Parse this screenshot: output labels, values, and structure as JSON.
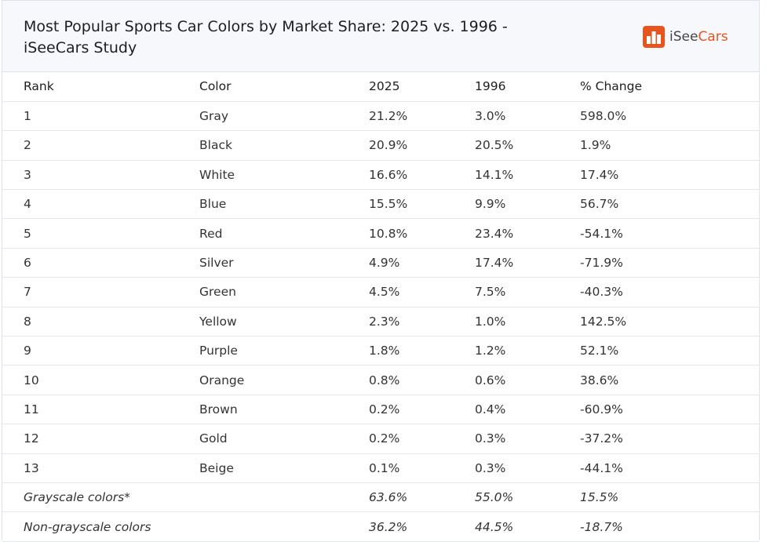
{
  "header": {
    "title": "Most Popular Sports Car Colors by Market Share: 2025 vs. 1996 - iSeeCars Study",
    "brand": {
      "prefix": "iSee",
      "suffix": "Cars"
    }
  },
  "table": {
    "columns": [
      "Rank",
      "Color",
      "2025",
      "1996",
      "% Change"
    ],
    "rows": [
      [
        "1",
        "Gray",
        "21.2%",
        "3.0%",
        "598.0%"
      ],
      [
        "2",
        "Black",
        "20.9%",
        "20.5%",
        "1.9%"
      ],
      [
        "3",
        "White",
        "16.6%",
        "14.1%",
        "17.4%"
      ],
      [
        "4",
        "Blue",
        "15.5%",
        "9.9%",
        "56.7%"
      ],
      [
        "5",
        "Red",
        "10.8%",
        "23.4%",
        "-54.1%"
      ],
      [
        "6",
        "Silver",
        "4.9%",
        "17.4%",
        "-71.9%"
      ],
      [
        "7",
        "Green",
        "4.5%",
        "7.5%",
        "-40.3%"
      ],
      [
        "8",
        "Yellow",
        "2.3%",
        "1.0%",
        "142.5%"
      ],
      [
        "9",
        "Purple",
        "1.8%",
        "1.2%",
        "52.1%"
      ],
      [
        "10",
        "Orange",
        "0.8%",
        "0.6%",
        "38.6%"
      ],
      [
        "11",
        "Brown",
        "0.2%",
        "0.4%",
        "-60.9%"
      ],
      [
        "12",
        "Gold",
        "0.2%",
        "0.3%",
        "-37.2%"
      ],
      [
        "13",
        "Beige",
        "0.1%",
        "0.3%",
        "-44.1%"
      ]
    ],
    "summary_rows": [
      [
        "Grayscale colors*",
        "63.6%",
        "55.0%",
        "15.5%"
      ],
      [
        "Non-grayscale colors",
        "36.2%",
        "44.5%",
        "-18.7%"
      ]
    ]
  }
}
